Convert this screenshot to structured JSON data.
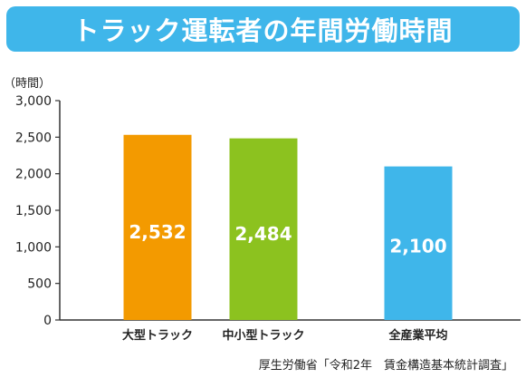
{
  "header": {
    "title": "トラック運転者の年間労働時間"
  },
  "colors": {
    "banner": "#3fb6ea",
    "bars": [
      "#f39a00",
      "#8cc21f",
      "#3fb6ea"
    ],
    "axis": "#333333",
    "grid": "#bbbbbb"
  },
  "chart_data": {
    "type": "bar",
    "title": "トラック運転者の年間労働時間",
    "ylabel": "（時間）",
    "xlabel": "",
    "categories": [
      "大型トラック",
      "中小型トラック",
      "全産業平均"
    ],
    "values": [
      2532,
      2484,
      2100
    ],
    "value_labels": [
      "2,532",
      "2,484",
      "2,100"
    ],
    "ylim": [
      0,
      3000
    ],
    "yticks": [
      0,
      500,
      1000,
      1500,
      2000,
      2500,
      3000
    ],
    "ytick_labels": [
      "0",
      "500",
      "1,000",
      "1,500",
      "2,000",
      "2,500",
      "3,000"
    ],
    "grid": false
  },
  "footer": {
    "source": "厚生労働省「令和2年　賃金構造基本統計調査」"
  }
}
